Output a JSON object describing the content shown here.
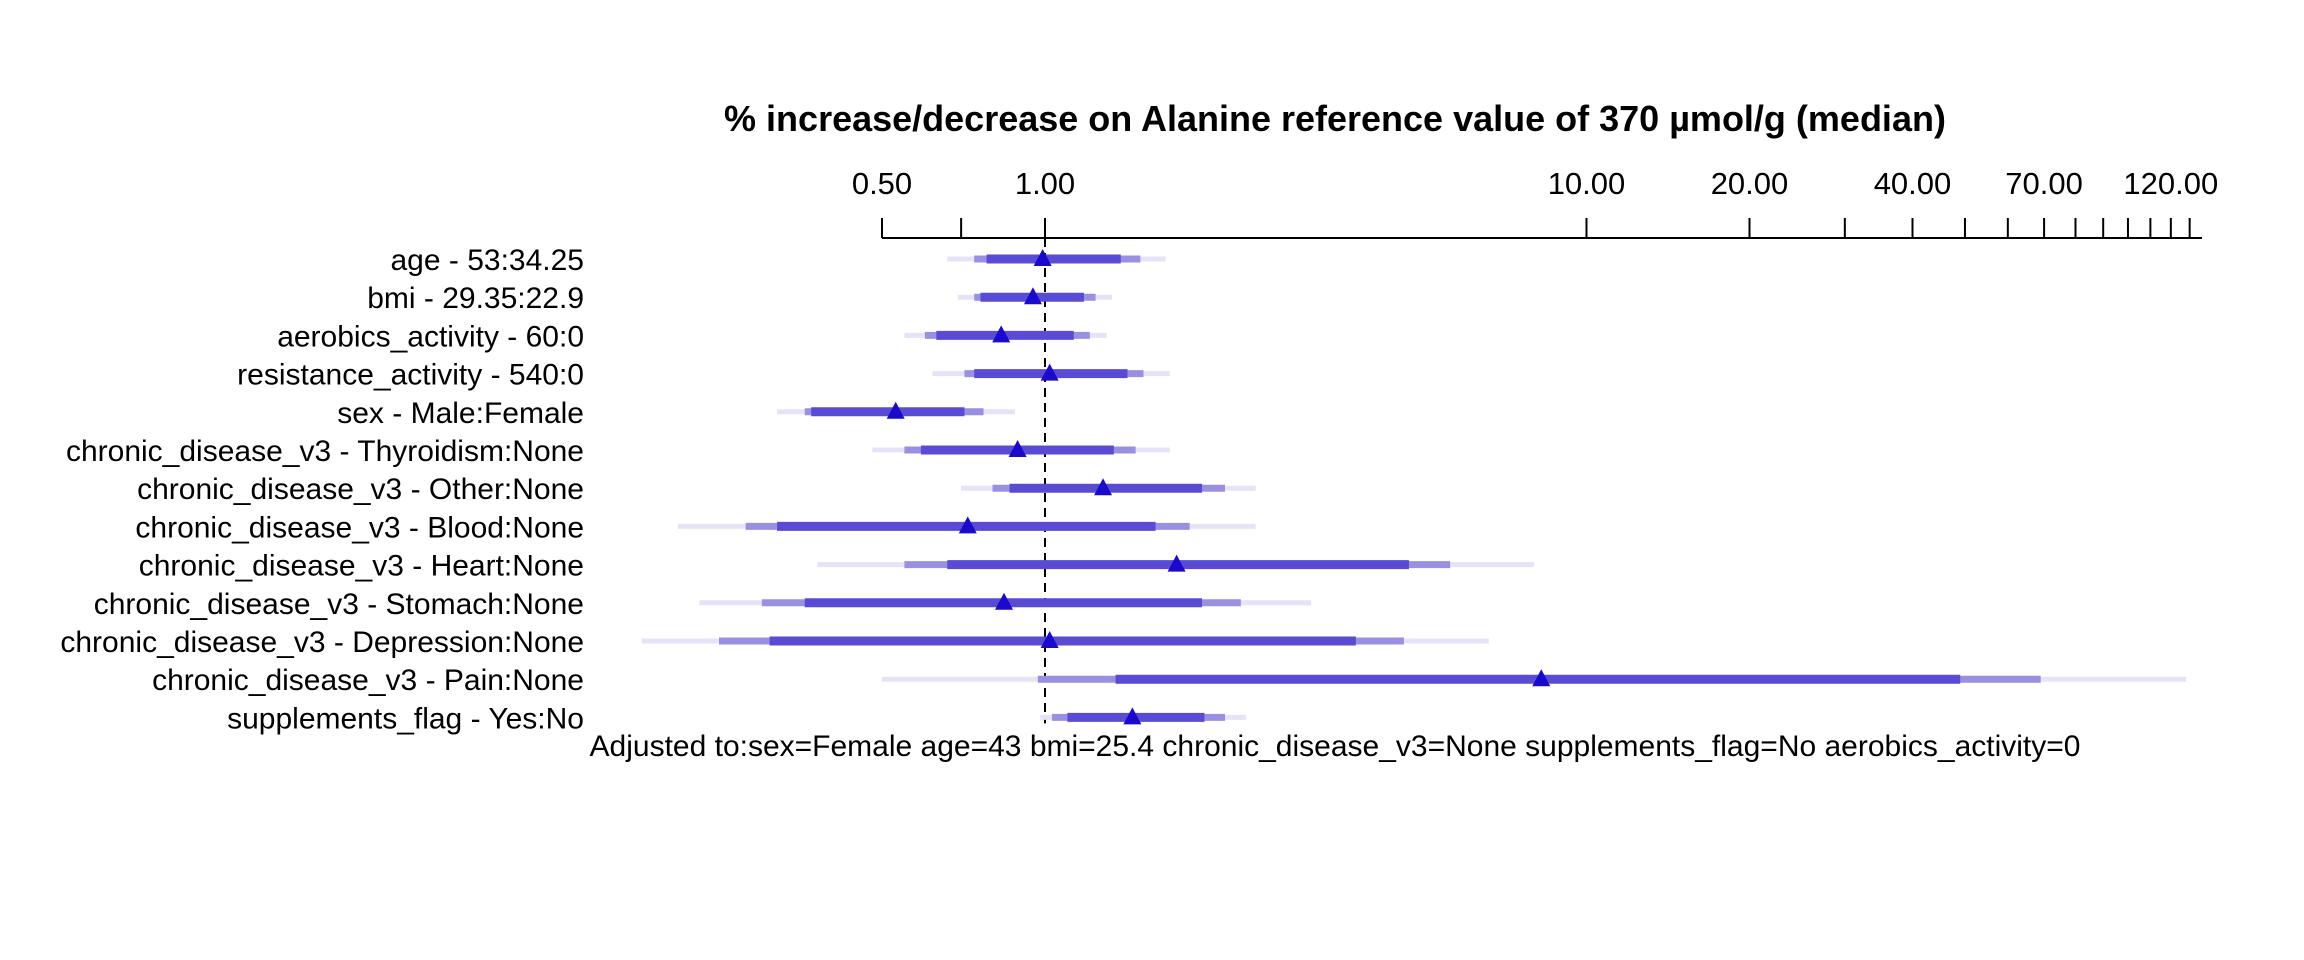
{
  "chart_data": {
    "type": "forest",
    "title": "% increase/decrease on Alanine reference value of 370 µmol/g (median)",
    "x_scale": "log",
    "xlim": [
      0.5,
      137
    ],
    "tick_values": [
      0.5,
      0.7,
      1,
      10,
      20,
      30,
      40,
      50,
      60,
      70,
      80,
      90,
      100,
      110,
      120,
      130
    ],
    "tick_labels": [
      {
        "value": 0.5,
        "text": "0.50"
      },
      {
        "value": 1,
        "text": "1.00"
      },
      {
        "value": 10,
        "text": "10.00"
      },
      {
        "value": 20,
        "text": "20.00"
      },
      {
        "value": 40,
        "text": "40.00"
      },
      {
        "value": 70,
        "text": "70.00"
      },
      {
        "value": 120,
        "text": "120.00"
      }
    ],
    "reference_line": 1,
    "footnote": "Adjusted to:sex=Female age=43 bmi=25.4 chronic_disease_v3=None supplements_flag=No aerobics_activity=0",
    "rows": [
      {
        "label": "age - 53:34.25",
        "est": 0.99,
        "ci90": [
          0.78,
          1.38
        ],
        "ci95": [
          0.74,
          1.5
        ],
        "ci99": [
          0.66,
          1.67
        ]
      },
      {
        "label": "bmi - 29.35:22.9",
        "est": 0.95,
        "ci90": [
          0.76,
          1.18
        ],
        "ci95": [
          0.74,
          1.24
        ],
        "ci99": [
          0.69,
          1.33
        ]
      },
      {
        "label": "aerobics_activity - 60:0",
        "est": 0.83,
        "ci90": [
          0.63,
          1.13
        ],
        "ci95": [
          0.6,
          1.21
        ],
        "ci99": [
          0.55,
          1.3
        ]
      },
      {
        "label": "resistance_activity - 540:0",
        "est": 1.02,
        "ci90": [
          0.74,
          1.42
        ],
        "ci95": [
          0.71,
          1.52
        ],
        "ci99": [
          0.62,
          1.7
        ]
      },
      {
        "label": "sex - Male:Female",
        "est": 0.53,
        "ci90": [
          0.37,
          0.71
        ],
        "ci95": [
          0.36,
          0.77
        ],
        "ci99": [
          0.32,
          0.88
        ]
      },
      {
        "label": "chronic_disease_v3 - Thyroidism:None",
        "est": 0.89,
        "ci90": [
          0.59,
          1.34
        ],
        "ci95": [
          0.55,
          1.47
        ],
        "ci99": [
          0.48,
          1.7
        ]
      },
      {
        "label": "chronic_disease_v3 - Other:None",
        "est": 1.28,
        "ci90": [
          0.86,
          1.95
        ],
        "ci95": [
          0.8,
          2.15
        ],
        "ci99": [
          0.7,
          2.45
        ]
      },
      {
        "label": "chronic_disease_v3 - Blood:None",
        "est": 0.72,
        "ci90": [
          0.32,
          1.6
        ],
        "ci95": [
          0.28,
          1.85
        ],
        "ci99": [
          0.21,
          2.45
        ]
      },
      {
        "label": "chronic_disease_v3 - Heart:None",
        "est": 1.75,
        "ci90": [
          0.66,
          4.7
        ],
        "ci95": [
          0.55,
          5.6
        ],
        "ci99": [
          0.38,
          8.0
        ]
      },
      {
        "label": "chronic_disease_v3 - Stomach:None",
        "est": 0.84,
        "ci90": [
          0.36,
          1.95
        ],
        "ci95": [
          0.3,
          2.3
        ],
        "ci99": [
          0.23,
          3.1
        ]
      },
      {
        "label": "chronic_disease_v3 - Depression:None",
        "est": 1.02,
        "ci90": [
          0.31,
          3.75
        ],
        "ci95": [
          0.25,
          4.6
        ],
        "ci99": [
          0.18,
          6.6
        ]
      },
      {
        "label": "chronic_disease_v3 - Pain:None",
        "est": 8.25,
        "ci90": [
          1.35,
          49.0
        ],
        "ci95": [
          0.97,
          69.0
        ],
        "ci99": [
          0.5,
          128.0
        ]
      },
      {
        "label": "supplements_flag - Yes:No",
        "est": 1.45,
        "ci90": [
          1.1,
          1.97
        ],
        "ci95": [
          1.03,
          2.15
        ],
        "ci99": [
          0.98,
          2.35
        ]
      }
    ],
    "colors": {
      "ci90": "#5a4bd4",
      "ci95": "#9a90e2",
      "ci99": "#e6e3f8",
      "estimate": "#1a0acb",
      "reference_line": "#000000",
      "axis": "#000000"
    }
  }
}
